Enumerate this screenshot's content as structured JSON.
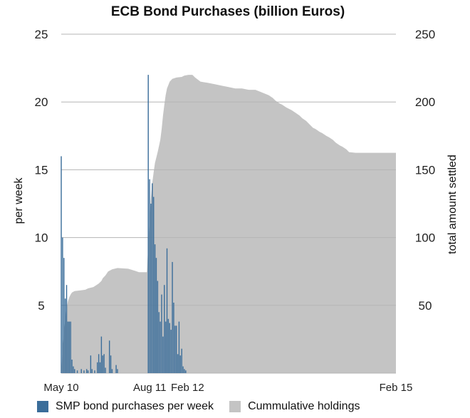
{
  "chart_data": {
    "type": "bar+area",
    "title": "ECB Bond Purchases (billion Euros)",
    "y_left": {
      "label": "per week",
      "ticks": [
        5,
        10,
        15,
        20,
        25
      ],
      "range": [
        0,
        25
      ]
    },
    "y_right": {
      "label": "total amount settled",
      "ticks": [
        50,
        100,
        150,
        200,
        250
      ],
      "range": [
        0,
        250
      ]
    },
    "x": {
      "ticks": [
        "May 10",
        "Aug 11",
        "Feb 12",
        "Feb 15"
      ],
      "range": [
        0,
        250
      ]
    },
    "legend_position": "bottom",
    "grid": true,
    "series": [
      {
        "name": "SMP bond purchases per week",
        "kind": "bar",
        "axis": "left",
        "color": "#3a6d9a",
        "points": [
          [
            0,
            16.0
          ],
          [
            1,
            10.0
          ],
          [
            2,
            8.5
          ],
          [
            3,
            5.5
          ],
          [
            4,
            6.5
          ],
          [
            5,
            3.8
          ],
          [
            6,
            3.8
          ],
          [
            7,
            3.8
          ],
          [
            8,
            1.0
          ],
          [
            9,
            0.5
          ],
          [
            10,
            0.3
          ],
          [
            12,
            0.2
          ],
          [
            15,
            0.3
          ],
          [
            17,
            0.2
          ],
          [
            19,
            0.3
          ],
          [
            20,
            0.2
          ],
          [
            22,
            1.3
          ],
          [
            23,
            0.3
          ],
          [
            25,
            0.2
          ],
          [
            27,
            0.8
          ],
          [
            28,
            1.4
          ],
          [
            29,
            0.8
          ],
          [
            30,
            2.7
          ],
          [
            31,
            1.3
          ],
          [
            32,
            1.4
          ],
          [
            33,
            0.4
          ],
          [
            36,
            2.4
          ],
          [
            37,
            1.3
          ],
          [
            38,
            0.3
          ],
          [
            41,
            0.6
          ],
          [
            42,
            0.3
          ],
          [
            65,
            22.0
          ],
          [
            66,
            14.3
          ],
          [
            67,
            12.5
          ],
          [
            68,
            14.0
          ],
          [
            69,
            13.0
          ],
          [
            70,
            9.5
          ],
          [
            71,
            8.5
          ],
          [
            72,
            6.8
          ],
          [
            73,
            4.5
          ],
          [
            74,
            3.8
          ],
          [
            75,
            5.8
          ],
          [
            76,
            2.7
          ],
          [
            77,
            6.5
          ],
          [
            78,
            3.8
          ],
          [
            79,
            9.2
          ],
          [
            80,
            4.0
          ],
          [
            81,
            3.7
          ],
          [
            82,
            3.2
          ],
          [
            83,
            8.2
          ],
          [
            84,
            5.2
          ],
          [
            85,
            3.5
          ],
          [
            86,
            3.5
          ],
          [
            87,
            1.4
          ],
          [
            88,
            3.8
          ],
          [
            89,
            1.3
          ],
          [
            90,
            1.8
          ],
          [
            91,
            0.5
          ],
          [
            92,
            0.3
          ],
          [
            93,
            0.2
          ]
        ]
      },
      {
        "name": "Cummulative holdings",
        "kind": "area",
        "axis": "right",
        "color": "#c4c4c4",
        "points": [
          [
            0,
            0
          ],
          [
            1,
            18
          ],
          [
            2,
            30
          ],
          [
            3,
            40
          ],
          [
            4,
            48
          ],
          [
            5,
            53
          ],
          [
            6,
            56
          ],
          [
            7,
            58
          ],
          [
            8,
            59.5
          ],
          [
            10,
            60.5
          ],
          [
            14,
            61
          ],
          [
            18,
            61.5
          ],
          [
            20,
            62.5
          ],
          [
            24,
            63.5
          ],
          [
            28,
            66
          ],
          [
            30,
            68
          ],
          [
            31,
            70
          ],
          [
            33,
            72
          ],
          [
            35,
            75
          ],
          [
            38,
            76.5
          ],
          [
            42,
            77.5
          ],
          [
            50,
            77
          ],
          [
            55,
            75.5
          ],
          [
            58,
            74.5
          ],
          [
            64,
            74.5
          ],
          [
            65,
            95
          ],
          [
            66,
            115
          ],
          [
            67,
            130
          ],
          [
            68,
            140
          ],
          [
            69,
            148
          ],
          [
            70,
            155
          ],
          [
            72,
            163
          ],
          [
            74,
            172
          ],
          [
            75,
            180
          ],
          [
            76,
            190
          ],
          [
            77,
            198
          ],
          [
            78,
            205
          ],
          [
            79,
            210
          ],
          [
            81,
            215
          ],
          [
            83,
            217
          ],
          [
            86,
            218
          ],
          [
            90,
            218.5
          ],
          [
            92,
            219.5
          ],
          [
            95,
            220
          ],
          [
            98,
            220
          ],
          [
            100,
            218
          ],
          [
            104,
            215
          ],
          [
            110,
            214
          ],
          [
            115,
            213
          ],
          [
            120,
            212
          ],
          [
            125,
            211
          ],
          [
            130,
            210
          ],
          [
            135,
            210
          ],
          [
            140,
            209
          ],
          [
            145,
            209
          ],
          [
            150,
            207
          ],
          [
            155,
            205
          ],
          [
            158,
            203
          ],
          [
            160,
            201
          ],
          [
            163,
            199
          ],
          [
            165,
            198
          ],
          [
            168,
            196
          ],
          [
            170,
            195
          ],
          [
            172,
            194
          ],
          [
            175,
            192
          ],
          [
            178,
            190
          ],
          [
            180,
            188
          ],
          [
            183,
            186
          ],
          [
            185,
            184
          ],
          [
            188,
            181
          ],
          [
            190,
            180
          ],
          [
            193,
            178
          ],
          [
            195,
            177
          ],
          [
            198,
            175
          ],
          [
            200,
            174
          ],
          [
            203,
            172
          ],
          [
            205,
            170
          ],
          [
            208,
            168
          ],
          [
            210,
            167
          ],
          [
            213,
            165
          ],
          [
            215,
            163
          ],
          [
            220,
            162.5
          ],
          [
            230,
            162.5
          ],
          [
            240,
            162.5
          ],
          [
            250,
            162.5
          ]
        ]
      }
    ]
  }
}
